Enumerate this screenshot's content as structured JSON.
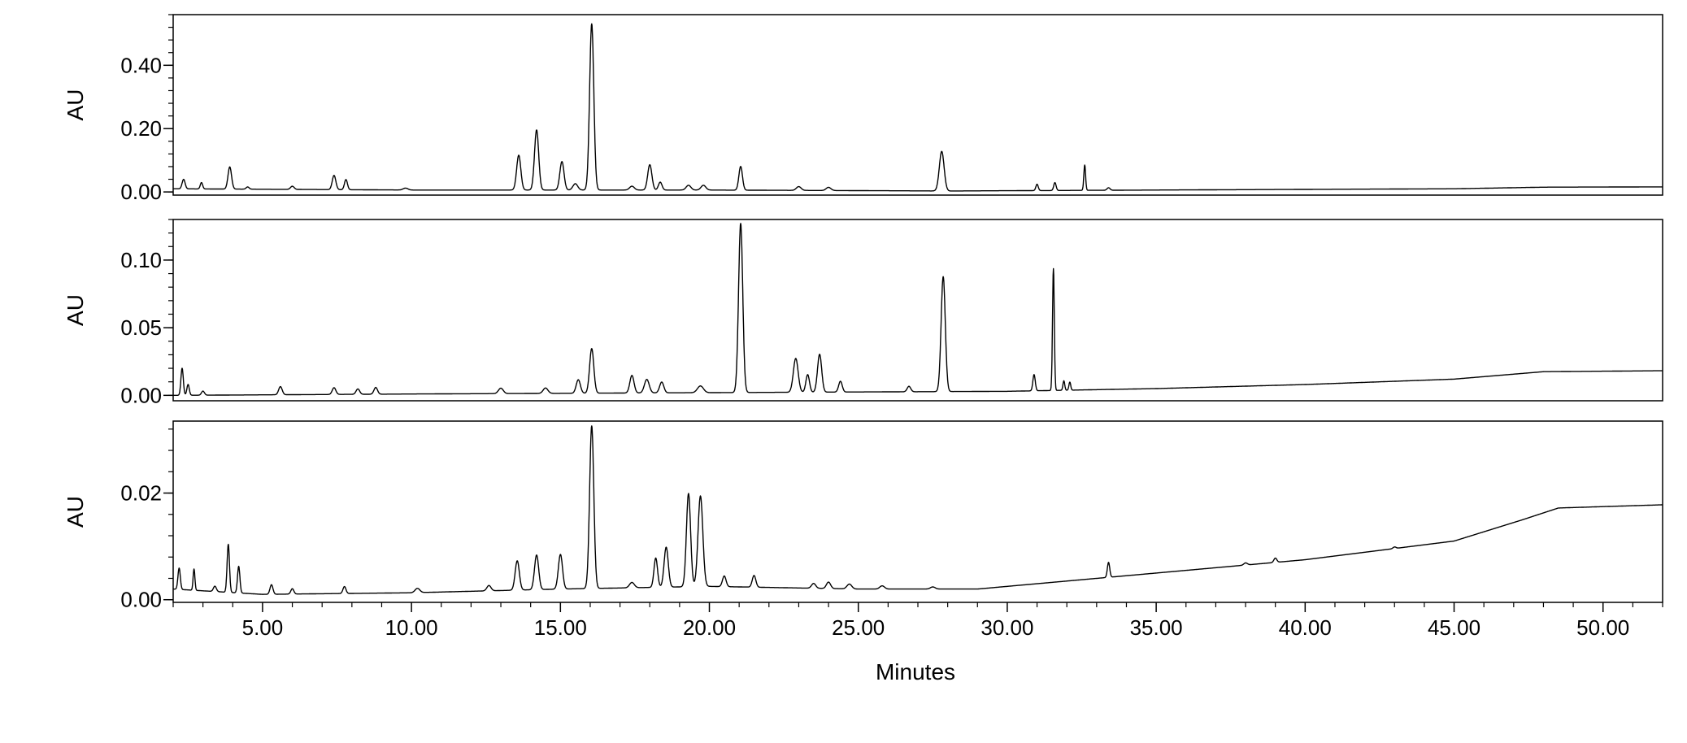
{
  "chart_data": [
    {
      "type": "line",
      "title": "",
      "xlabel": "Minutes",
      "ylabel": "AU",
      "xlim": [
        2.0,
        52.0
      ],
      "ylim": [
        -0.01,
        0.56
      ],
      "yticks": [
        "0.00",
        "0.20",
        "0.40"
      ],
      "ytick_values": [
        0.0,
        0.2,
        0.4
      ],
      "grid": false,
      "line_color": "#000000",
      "baseline": [
        [
          2.0,
          0.01
        ],
        [
          10,
          0.006
        ],
        [
          20,
          0.006
        ],
        [
          28,
          0.003
        ],
        [
          35,
          0.006
        ],
        [
          45,
          0.01
        ],
        [
          48,
          0.015
        ],
        [
          52,
          0.016
        ]
      ],
      "peaks": [
        [
          2.35,
          0.03,
          0.05
        ],
        [
          2.95,
          0.02,
          0.04
        ],
        [
          3.9,
          0.07,
          0.06
        ],
        [
          4.5,
          0.007,
          0.05
        ],
        [
          6.0,
          0.01,
          0.06
        ],
        [
          7.4,
          0.045,
          0.06
        ],
        [
          7.8,
          0.032,
          0.05
        ],
        [
          9.8,
          0.006,
          0.08
        ],
        [
          13.6,
          0.11,
          0.07
        ],
        [
          14.2,
          0.19,
          0.07
        ],
        [
          15.05,
          0.09,
          0.07
        ],
        [
          15.5,
          0.02,
          0.08
        ],
        [
          16.05,
          0.525,
          0.07
        ],
        [
          17.4,
          0.012,
          0.08
        ],
        [
          18.0,
          0.08,
          0.07
        ],
        [
          18.35,
          0.025,
          0.06
        ],
        [
          19.3,
          0.015,
          0.08
        ],
        [
          19.8,
          0.015,
          0.08
        ],
        [
          21.05,
          0.075,
          0.06
        ],
        [
          23.0,
          0.012,
          0.08
        ],
        [
          24.0,
          0.01,
          0.08
        ],
        [
          27.8,
          0.125,
          0.08
        ],
        [
          31.0,
          0.02,
          0.04
        ],
        [
          31.6,
          0.025,
          0.04
        ],
        [
          32.6,
          0.08,
          0.03
        ],
        [
          33.4,
          0.008,
          0.05
        ]
      ]
    },
    {
      "type": "line",
      "title": "",
      "xlabel": "Minutes",
      "ylabel": "AU",
      "xlim": [
        2.0,
        52.0
      ],
      "ylim": [
        -0.004,
        0.13
      ],
      "yticks": [
        "0.00",
        "0.05",
        "0.10"
      ],
      "ytick_values": [
        0.0,
        0.05,
        0.1
      ],
      "grid": false,
      "line_color": "#000000",
      "baseline": [
        [
          2.0,
          0.0
        ],
        [
          10,
          0.001
        ],
        [
          20,
          0.002
        ],
        [
          30,
          0.003
        ],
        [
          35,
          0.005
        ],
        [
          40,
          0.008
        ],
        [
          45,
          0.012
        ],
        [
          48,
          0.0175
        ],
        [
          52,
          0.0182
        ]
      ],
      "peaks": [
        [
          2.3,
          0.02,
          0.04
        ],
        [
          2.5,
          0.008,
          0.04
        ],
        [
          3.0,
          0.003,
          0.05
        ],
        [
          5.6,
          0.006,
          0.06
        ],
        [
          7.4,
          0.005,
          0.06
        ],
        [
          8.2,
          0.004,
          0.06
        ],
        [
          8.8,
          0.005,
          0.06
        ],
        [
          13.0,
          0.004,
          0.08
        ],
        [
          14.5,
          0.004,
          0.08
        ],
        [
          15.6,
          0.01,
          0.07
        ],
        [
          16.05,
          0.033,
          0.07
        ],
        [
          17.4,
          0.013,
          0.07
        ],
        [
          17.9,
          0.01,
          0.08
        ],
        [
          18.4,
          0.008,
          0.07
        ],
        [
          19.7,
          0.005,
          0.1
        ],
        [
          21.05,
          0.125,
          0.07
        ],
        [
          22.9,
          0.025,
          0.08
        ],
        [
          23.3,
          0.013,
          0.06
        ],
        [
          23.7,
          0.028,
          0.07
        ],
        [
          24.4,
          0.008,
          0.06
        ],
        [
          26.7,
          0.004,
          0.06
        ],
        [
          27.85,
          0.085,
          0.07
        ],
        [
          30.9,
          0.012,
          0.04
        ],
        [
          31.55,
          0.09,
          0.03
        ],
        [
          31.9,
          0.007,
          0.03
        ],
        [
          32.1,
          0.006,
          0.03
        ]
      ]
    },
    {
      "type": "line",
      "title": "",
      "xlabel": "Minutes",
      "ylabel": "AU",
      "xlim": [
        2.0,
        52.0
      ],
      "ylim": [
        -0.0005,
        0.0335
      ],
      "yticks": [
        "0.00",
        "0.02"
      ],
      "ytick_values": [
        0.0,
        0.02
      ],
      "grid": false,
      "line_color": "#000000",
      "baseline": [
        [
          2.0,
          0.002
        ],
        [
          5,
          0.001
        ],
        [
          10,
          0.0013
        ],
        [
          15,
          0.002
        ],
        [
          20,
          0.0025
        ],
        [
          25,
          0.002
        ],
        [
          29,
          0.002
        ],
        [
          30,
          0.0025
        ],
        [
          35,
          0.005
        ],
        [
          40,
          0.0075
        ],
        [
          45,
          0.011
        ],
        [
          47.3,
          0.015
        ],
        [
          48.5,
          0.0172
        ],
        [
          52,
          0.0178
        ]
      ],
      "peaks": [
        [
          2.2,
          0.004,
          0.04
        ],
        [
          2.7,
          0.004,
          0.03
        ],
        [
          3.4,
          0.001,
          0.05
        ],
        [
          3.85,
          0.009,
          0.04
        ],
        [
          4.2,
          0.005,
          0.04
        ],
        [
          5.3,
          0.0018,
          0.05
        ],
        [
          6.0,
          0.001,
          0.05
        ],
        [
          7.75,
          0.0013,
          0.05
        ],
        [
          10.2,
          0.0008,
          0.08
        ],
        [
          12.6,
          0.001,
          0.07
        ],
        [
          13.55,
          0.0055,
          0.07
        ],
        [
          14.2,
          0.0065,
          0.07
        ],
        [
          15.0,
          0.0065,
          0.07
        ],
        [
          16.05,
          0.0305,
          0.07
        ],
        [
          17.4,
          0.001,
          0.08
        ],
        [
          18.2,
          0.0055,
          0.06
        ],
        [
          18.55,
          0.0075,
          0.07
        ],
        [
          19.3,
          0.0175,
          0.07
        ],
        [
          19.7,
          0.017,
          0.08
        ],
        [
          20.5,
          0.002,
          0.06
        ],
        [
          21.5,
          0.0022,
          0.06
        ],
        [
          23.5,
          0.0009,
          0.07
        ],
        [
          24.0,
          0.0012,
          0.07
        ],
        [
          24.7,
          0.0009,
          0.08
        ],
        [
          25.8,
          0.0006,
          0.08
        ],
        [
          27.5,
          0.0004,
          0.08
        ],
        [
          33.4,
          0.0028,
          0.04
        ],
        [
          38.0,
          0.0004,
          0.06
        ],
        [
          39.0,
          0.0008,
          0.05
        ],
        [
          43.0,
          0.0003,
          0.05
        ]
      ]
    }
  ],
  "x_axis": {
    "label": "Minutes",
    "ticks": [
      "5.00",
      "10.00",
      "15.00",
      "20.00",
      "25.00",
      "30.00",
      "35.00",
      "40.00",
      "45.00",
      "50.00"
    ],
    "tick_values": [
      5,
      10,
      15,
      20,
      25,
      30,
      35,
      40,
      45,
      50
    ]
  }
}
